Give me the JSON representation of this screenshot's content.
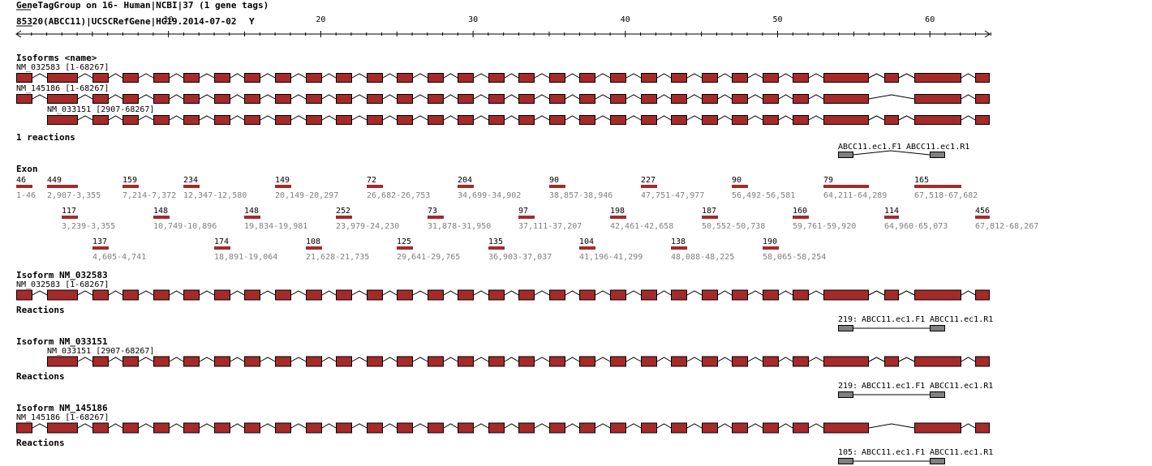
{
  "header": {
    "title": "GeneTagGroup on 16- Human|NCBI|37 (1 gene tags)",
    "gene_line": "85320(ABCC11)|UCSCRefGene|HG19.2014-07-02",
    "gene_caret": "Y"
  },
  "ruler": {
    "ticks": [
      "10",
      "20",
      "30",
      "40",
      "50",
      "60"
    ]
  },
  "colors": {
    "exon": "#a52a2a",
    "reaction": "#808080",
    "line": "#000000",
    "label_gray": "#808080"
  },
  "isoforms_section": {
    "title": "Isoforms <name>",
    "isoforms": [
      {
        "label": "NM_032583 [1-68267]"
      },
      {
        "label": "NM_145186 [1-68267]"
      },
      {
        "label": "NM_033151 [2907-68267]"
      }
    ]
  },
  "reactions_overview": {
    "title": "1 reactions",
    "f_label": "ABCC11.ec1.F1",
    "r_label": "ABCC11.ec1.R1"
  },
  "exon_section": {
    "title": "Exon",
    "exons": [
      {
        "len": "46",
        "range": "1-46"
      },
      {
        "len": "449",
        "range": "2,907-3,355"
      },
      {
        "len": "117",
        "range": "3,239-3,355"
      },
      {
        "len": "137",
        "range": "4,605-4,741"
      },
      {
        "len": "159",
        "range": "7,214-7,372"
      },
      {
        "len": "148",
        "range": "10,749-10,896"
      },
      {
        "len": "234",
        "range": "12,347-12,580"
      },
      {
        "len": "174",
        "range": "18,891-19,064"
      },
      {
        "len": "148",
        "range": "19,834-19,981"
      },
      {
        "len": "149",
        "range": "20,149-20,297"
      },
      {
        "len": "108",
        "range": "21,628-21,735"
      },
      {
        "len": "252",
        "range": "23,979-24,230"
      },
      {
        "len": "72",
        "range": "26,682-26,753"
      },
      {
        "len": "125",
        "range": "29,641-29,765"
      },
      {
        "len": "73",
        "range": "31,878-31,950"
      },
      {
        "len": "204",
        "range": "34,699-34,902"
      },
      {
        "len": "135",
        "range": "36,903-37,037"
      },
      {
        "len": "97",
        "range": "37,111-37,207"
      },
      {
        "len": "90",
        "range": "38,857-38,946"
      },
      {
        "len": "104",
        "range": "41,196-41,299"
      },
      {
        "len": "198",
        "range": "42,461-42,658"
      },
      {
        "len": "227",
        "range": "47,751-47,977"
      },
      {
        "len": "138",
        "range": "48,088-48,225"
      },
      {
        "len": "187",
        "range": "50,552-50,738"
      },
      {
        "len": "90",
        "range": "56,492-56,581"
      },
      {
        "len": "190",
        "range": "58,065-58,254"
      },
      {
        "len": "160",
        "range": "59,761-59,920"
      },
      {
        "len": "79",
        "range": "64,211-64,289"
      },
      {
        "len": "114",
        "range": "64,960-65,073"
      },
      {
        "len": "165",
        "range": "67,518-67,682"
      },
      {
        "len": "456",
        "range": "67,812-68,267"
      }
    ]
  },
  "isoform_details": [
    {
      "title": "Isoform NM_032583",
      "label": "NM_032583 [1-68267]",
      "reactions_title": "Reactions",
      "size": "219:",
      "f_label": "ABCC11.ec1.F1",
      "r_label": "ABCC11.ec1.R1"
    },
    {
      "title": "Isoform NM_033151",
      "label": "NM_033151 [2907-68267]",
      "reactions_title": "Reactions",
      "size": "219:",
      "f_label": "ABCC11.ec1.F1",
      "r_label": "ABCC11.ec1.R1"
    },
    {
      "title": "Isoform NM_145186",
      "label": "NM_145186 [1-68267]",
      "reactions_title": "Reactions",
      "size": "105:",
      "f_label": "ABCC11.ec1.F1",
      "r_label": "ABCC11.ec1.R1"
    }
  ]
}
